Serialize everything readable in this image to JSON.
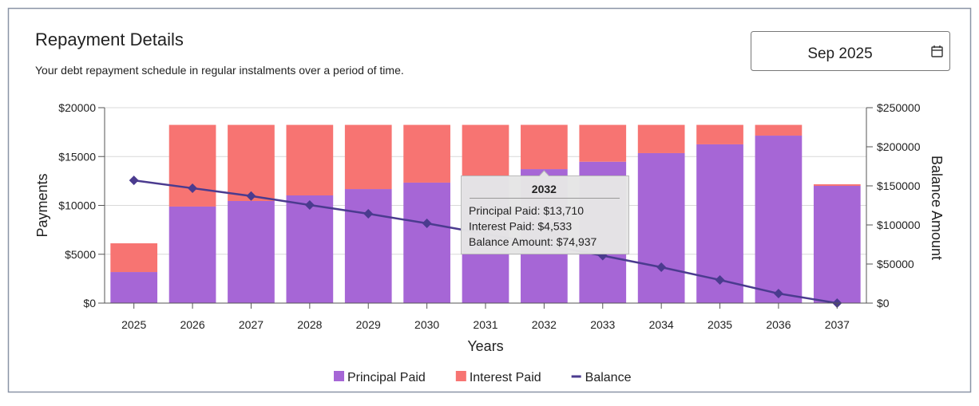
{
  "header": {
    "title": "Repayment Details",
    "subtitle": "Your debt repayment schedule in regular instalments over a period of time."
  },
  "date_picker": {
    "value": "Sep 2025"
  },
  "chart_data": {
    "type": "bar",
    "stacked": true,
    "categories": [
      "2025",
      "2026",
      "2027",
      "2028",
      "2029",
      "2030",
      "2031",
      "2032",
      "2033",
      "2034",
      "2035",
      "2036",
      "2037"
    ],
    "series": [
      {
        "name": "Principal Paid",
        "color": "#a666d6",
        "axis": "y",
        "values": [
          3180,
          9880,
          10450,
          11020,
          11670,
          12330,
          13000,
          13710,
          14470,
          15350,
          16250,
          17140,
          12000
        ]
      },
      {
        "name": "Interest Paid",
        "color": "#f77472",
        "axis": "y",
        "values": [
          2940,
          8360,
          7790,
          7220,
          6570,
          5910,
          5240,
          4533,
          3770,
          2890,
          1990,
          1100,
          160
        ]
      },
      {
        "name": "Balance",
        "color": "#4b3b8f",
        "axis": "y2",
        "type": "line",
        "values": [
          157000,
          147000,
          137000,
          125500,
          114300,
          102000,
          88500,
          74937,
          60700,
          45900,
          29600,
          12200,
          0
        ]
      }
    ],
    "ylim": [
      0,
      20000
    ],
    "yticks": [
      {
        "value": 0,
        "label": "$0"
      },
      {
        "value": 5000,
        "label": "$5000"
      },
      {
        "value": 10000,
        "label": "$10000"
      },
      {
        "value": 15000,
        "label": "$15000"
      },
      {
        "value": 20000,
        "label": "$20000"
      }
    ],
    "y2lim": [
      0,
      250000
    ],
    "y2ticks": [
      {
        "value": 0,
        "label": "$0"
      },
      {
        "value": 50000,
        "label": "$50000"
      },
      {
        "value": 100000,
        "label": "$100000"
      },
      {
        "value": 150000,
        "label": "$150000"
      },
      {
        "value": 200000,
        "label": "$200000"
      },
      {
        "value": 250000,
        "label": "$250000"
      }
    ],
    "xlabel": "Years",
    "ylabel": "Payments",
    "y2label": "Balance Amount",
    "grid": true,
    "tooltip": {
      "index": 7,
      "title": "2032",
      "lines": [
        "Principal Paid: $13,710",
        "Interest Paid: $4,533",
        "Balance Amount: $74,937"
      ]
    }
  }
}
